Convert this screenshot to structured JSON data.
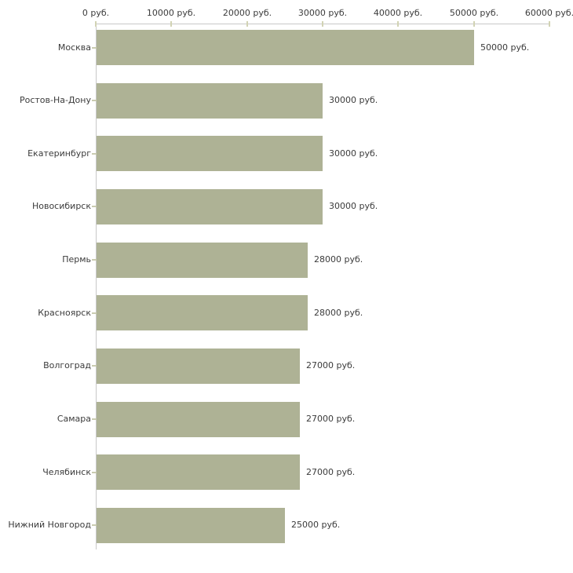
{
  "chart_data": {
    "type": "bar",
    "orientation": "horizontal",
    "title": "",
    "categories": [
      "Москва",
      "Ростов-На-Дону",
      "Екатеринбург",
      "Новосибирск",
      "Пермь",
      "Красноярск",
      "Волгоград",
      "Самара",
      "Челябинск",
      "Нижний Новгород"
    ],
    "values": [
      50000,
      30000,
      30000,
      30000,
      28000,
      28000,
      27000,
      27000,
      27000,
      25000
    ],
    "value_labels": [
      "50000 руб.",
      "30000 руб.",
      "30000 руб.",
      "30000 руб.",
      "28000 руб.",
      "28000 руб.",
      "27000 руб.",
      "27000 руб.",
      "27000 руб.",
      "25000 руб."
    ],
    "unit": "руб.",
    "x_axis": {
      "position": "top",
      "range": [
        0,
        60000
      ],
      "ticks": [
        0,
        10000,
        20000,
        30000,
        40000,
        50000,
        60000
      ],
      "tick_labels": [
        "0 руб.",
        "10000 руб.",
        "20000 руб.",
        "30000 руб.",
        "40000 руб.",
        "50000 руб.",
        "60000 руб."
      ]
    },
    "grid": false,
    "legend": false,
    "colors": {
      "bar": "#aeb295",
      "axis_line": "#c8c8c8",
      "axis_tick": "#d2d3b4",
      "category_tick": "#c9cbb0",
      "text": "#3b3b3b",
      "background": "#ffffff"
    }
  }
}
